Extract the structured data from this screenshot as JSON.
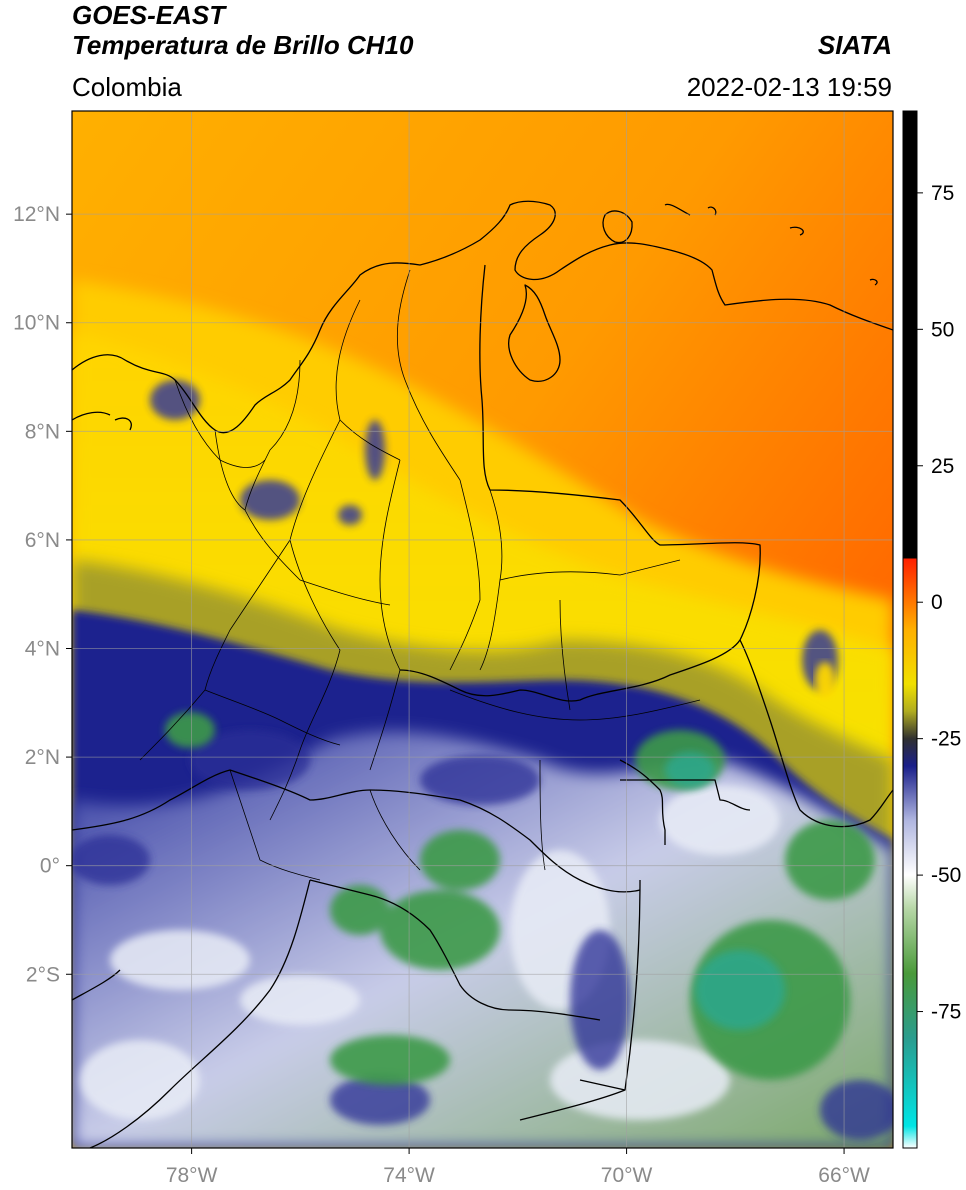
{
  "header": {
    "satellite": "GOES-EAST",
    "product": "Temperatura de Brillo CH10",
    "region": "Colombia",
    "agency": "SIATA",
    "datetime": "2022-02-13 19:59"
  },
  "map": {
    "lon_range": [
      -80.2,
      -65.1
    ],
    "lat_range": [
      -5.2,
      13.9
    ],
    "lon_ticks": [
      {
        "value": -78,
        "label": "78°W"
      },
      {
        "value": -74,
        "label": "74°W"
      },
      {
        "value": -70,
        "label": "70°W"
      },
      {
        "value": -66,
        "label": "66°W"
      }
    ],
    "lat_ticks": [
      {
        "value": 12,
        "label": "12°N"
      },
      {
        "value": 10,
        "label": "10°N"
      },
      {
        "value": 8,
        "label": "8°N"
      },
      {
        "value": 6,
        "label": "6°N"
      },
      {
        "value": 4,
        "label": "4°N"
      },
      {
        "value": 2,
        "label": "2°N"
      },
      {
        "value": 0,
        "label": "0°"
      },
      {
        "value": -2,
        "label": "2°S"
      }
    ],
    "grid": true
  },
  "colorbar": {
    "range": [
      -100,
      90
    ],
    "ticks": [
      {
        "value": 75,
        "label": "75"
      },
      {
        "value": 50,
        "label": "50"
      },
      {
        "value": 25,
        "label": "25"
      },
      {
        "value": 0,
        "label": "0"
      },
      {
        "value": -25,
        "label": "-25"
      },
      {
        "value": -50,
        "label": "-50"
      },
      {
        "value": -75,
        "label": "-75"
      }
    ],
    "stops": [
      {
        "value": -100,
        "color": "#ffffff"
      },
      {
        "value": -96,
        "color": "#00e5e5"
      },
      {
        "value": -80,
        "color": "#2a9d8f"
      },
      {
        "value": -68,
        "color": "#4a9a3a"
      },
      {
        "value": -56,
        "color": "#b8d8a8"
      },
      {
        "value": -50,
        "color": "#ffffff"
      },
      {
        "value": -40,
        "color": "#b0b6e0"
      },
      {
        "value": -30,
        "color": "#1a1f8a"
      },
      {
        "value": -25,
        "color": "#303030"
      },
      {
        "value": -20,
        "color": "#b0ac20"
      },
      {
        "value": -15,
        "color": "#f0e000"
      },
      {
        "value": -5,
        "color": "#ffb000"
      },
      {
        "value": 8,
        "color": "#ff2000"
      },
      {
        "value": 8.01,
        "color": "#000000"
      },
      {
        "value": 90,
        "color": "#000000"
      }
    ]
  }
}
